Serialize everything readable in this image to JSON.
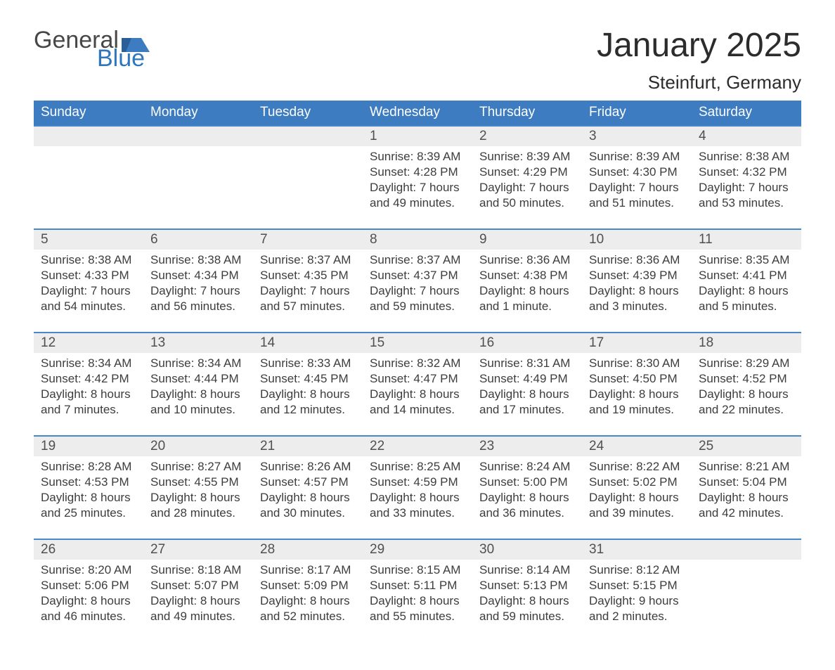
{
  "logo": {
    "text1": "General",
    "text2": "Blue",
    "flag_color": "#3d7cc0"
  },
  "title": "January 2025",
  "location": "Steinfurt, Germany",
  "colors": {
    "header_bg": "#3d7cc0",
    "header_text": "#ffffff",
    "daynum_bg": "#ededed",
    "daynum_border": "#4a87c7",
    "body_text": "#3d3d3d",
    "page_bg": "#ffffff"
  },
  "days_of_week": [
    "Sunday",
    "Monday",
    "Tuesday",
    "Wednesday",
    "Thursday",
    "Friday",
    "Saturday"
  ],
  "weeks": [
    [
      null,
      null,
      null,
      {
        "n": "1",
        "sr": "8:39 AM",
        "ss": "4:28 PM",
        "dl": "7 hours and 49 minutes."
      },
      {
        "n": "2",
        "sr": "8:39 AM",
        "ss": "4:29 PM",
        "dl": "7 hours and 50 minutes."
      },
      {
        "n": "3",
        "sr": "8:39 AM",
        "ss": "4:30 PM",
        "dl": "7 hours and 51 minutes."
      },
      {
        "n": "4",
        "sr": "8:38 AM",
        "ss": "4:32 PM",
        "dl": "7 hours and 53 minutes."
      }
    ],
    [
      {
        "n": "5",
        "sr": "8:38 AM",
        "ss": "4:33 PM",
        "dl": "7 hours and 54 minutes."
      },
      {
        "n": "6",
        "sr": "8:38 AM",
        "ss": "4:34 PM",
        "dl": "7 hours and 56 minutes."
      },
      {
        "n": "7",
        "sr": "8:37 AM",
        "ss": "4:35 PM",
        "dl": "7 hours and 57 minutes."
      },
      {
        "n": "8",
        "sr": "8:37 AM",
        "ss": "4:37 PM",
        "dl": "7 hours and 59 minutes."
      },
      {
        "n": "9",
        "sr": "8:36 AM",
        "ss": "4:38 PM",
        "dl": "8 hours and 1 minute."
      },
      {
        "n": "10",
        "sr": "8:36 AM",
        "ss": "4:39 PM",
        "dl": "8 hours and 3 minutes."
      },
      {
        "n": "11",
        "sr": "8:35 AM",
        "ss": "4:41 PM",
        "dl": "8 hours and 5 minutes."
      }
    ],
    [
      {
        "n": "12",
        "sr": "8:34 AM",
        "ss": "4:42 PM",
        "dl": "8 hours and 7 minutes."
      },
      {
        "n": "13",
        "sr": "8:34 AM",
        "ss": "4:44 PM",
        "dl": "8 hours and 10 minutes."
      },
      {
        "n": "14",
        "sr": "8:33 AM",
        "ss": "4:45 PM",
        "dl": "8 hours and 12 minutes."
      },
      {
        "n": "15",
        "sr": "8:32 AM",
        "ss": "4:47 PM",
        "dl": "8 hours and 14 minutes."
      },
      {
        "n": "16",
        "sr": "8:31 AM",
        "ss": "4:49 PM",
        "dl": "8 hours and 17 minutes."
      },
      {
        "n": "17",
        "sr": "8:30 AM",
        "ss": "4:50 PM",
        "dl": "8 hours and 19 minutes."
      },
      {
        "n": "18",
        "sr": "8:29 AM",
        "ss": "4:52 PM",
        "dl": "8 hours and 22 minutes."
      }
    ],
    [
      {
        "n": "19",
        "sr": "8:28 AM",
        "ss": "4:53 PM",
        "dl": "8 hours and 25 minutes."
      },
      {
        "n": "20",
        "sr": "8:27 AM",
        "ss": "4:55 PM",
        "dl": "8 hours and 28 minutes."
      },
      {
        "n": "21",
        "sr": "8:26 AM",
        "ss": "4:57 PM",
        "dl": "8 hours and 30 minutes."
      },
      {
        "n": "22",
        "sr": "8:25 AM",
        "ss": "4:59 PM",
        "dl": "8 hours and 33 minutes."
      },
      {
        "n": "23",
        "sr": "8:24 AM",
        "ss": "5:00 PM",
        "dl": "8 hours and 36 minutes."
      },
      {
        "n": "24",
        "sr": "8:22 AM",
        "ss": "5:02 PM",
        "dl": "8 hours and 39 minutes."
      },
      {
        "n": "25",
        "sr": "8:21 AM",
        "ss": "5:04 PM",
        "dl": "8 hours and 42 minutes."
      }
    ],
    [
      {
        "n": "26",
        "sr": "8:20 AM",
        "ss": "5:06 PM",
        "dl": "8 hours and 46 minutes."
      },
      {
        "n": "27",
        "sr": "8:18 AM",
        "ss": "5:07 PM",
        "dl": "8 hours and 49 minutes."
      },
      {
        "n": "28",
        "sr": "8:17 AM",
        "ss": "5:09 PM",
        "dl": "8 hours and 52 minutes."
      },
      {
        "n": "29",
        "sr": "8:15 AM",
        "ss": "5:11 PM",
        "dl": "8 hours and 55 minutes."
      },
      {
        "n": "30",
        "sr": "8:14 AM",
        "ss": "5:13 PM",
        "dl": "8 hours and 59 minutes."
      },
      {
        "n": "31",
        "sr": "8:12 AM",
        "ss": "5:15 PM",
        "dl": "9 hours and 2 minutes."
      },
      null
    ]
  ],
  "labels": {
    "sunrise": "Sunrise: ",
    "sunset": "Sunset: ",
    "daylight": "Daylight: "
  }
}
